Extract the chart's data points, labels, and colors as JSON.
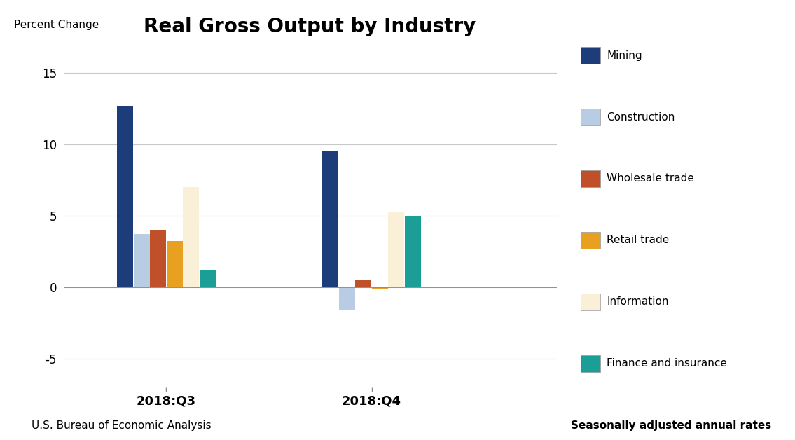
{
  "title": "Real Gross Output by Industry",
  "ylabel": "Percent Change",
  "quarters": [
    "2018:Q3",
    "2018:Q4"
  ],
  "series": [
    {
      "label": "Mining",
      "color": "#1C3D7A",
      "values": [
        12.7,
        9.5
      ]
    },
    {
      "label": "Construction",
      "color": "#B8CCE4",
      "values": [
        3.7,
        -1.6
      ]
    },
    {
      "label": "Wholesale trade",
      "color": "#C0502A",
      "values": [
        4.0,
        0.55
      ]
    },
    {
      "label": "Retail trade",
      "color": "#E8A020",
      "values": [
        3.2,
        -0.15
      ]
    },
    {
      "label": "Information",
      "color": "#FAF0D8",
      "values": [
        7.0,
        5.3
      ]
    },
    {
      "label": "Finance and insurance",
      "color": "#1B9E96",
      "values": [
        1.2,
        5.0
      ]
    }
  ],
  "ylim": [
    -7,
    17
  ],
  "yticks": [
    -5,
    0,
    5,
    10,
    15
  ],
  "bar_width": 0.08,
  "footnote_left": "U.S. Bureau of Economic Analysis",
  "footnote_right": "Seasonally adjusted annual rates",
  "background_color": "#FFFFFF",
  "grid_color": "#C8C8C8"
}
